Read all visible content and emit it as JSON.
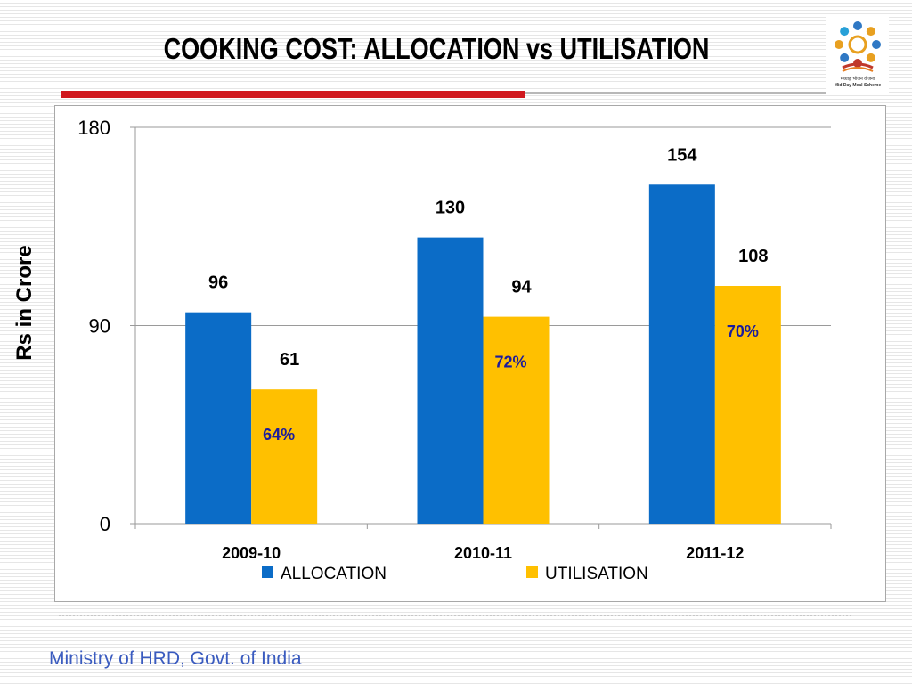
{
  "slide": {
    "title": "COOKING COST: ALLOCATION vs UTILISATION",
    "footer": "Ministry of HRD, Govt. of India",
    "logo_lines": [
      "मध्याह्न भोजन योजना",
      "Mid Day Meal Scheme"
    ]
  },
  "colors": {
    "allocation": "#0b6cc7",
    "utilisation": "#ffc000",
    "percent_text": "#1c1c9c",
    "title_rule": "#d0181e",
    "footer_text": "#3a5bbf"
  },
  "chart_data": {
    "type": "bar",
    "title": "",
    "xlabel": "",
    "ylabel": "Rs in Crore",
    "ylim": [
      0,
      180
    ],
    "yticks": [
      0,
      90,
      180
    ],
    "grid": true,
    "legend_position": "bottom",
    "categories": [
      "2009-10",
      "2010-11",
      "2011-12"
    ],
    "series": [
      {
        "name": "ALLOCATION",
        "values": [
          96,
          130,
          154
        ],
        "color": "#0b6cc7"
      },
      {
        "name": "UTILISATION",
        "values": [
          61,
          94,
          108
        ],
        "color": "#ffc000"
      }
    ],
    "annotations": [
      "64%",
      "72%",
      "70%"
    ]
  }
}
